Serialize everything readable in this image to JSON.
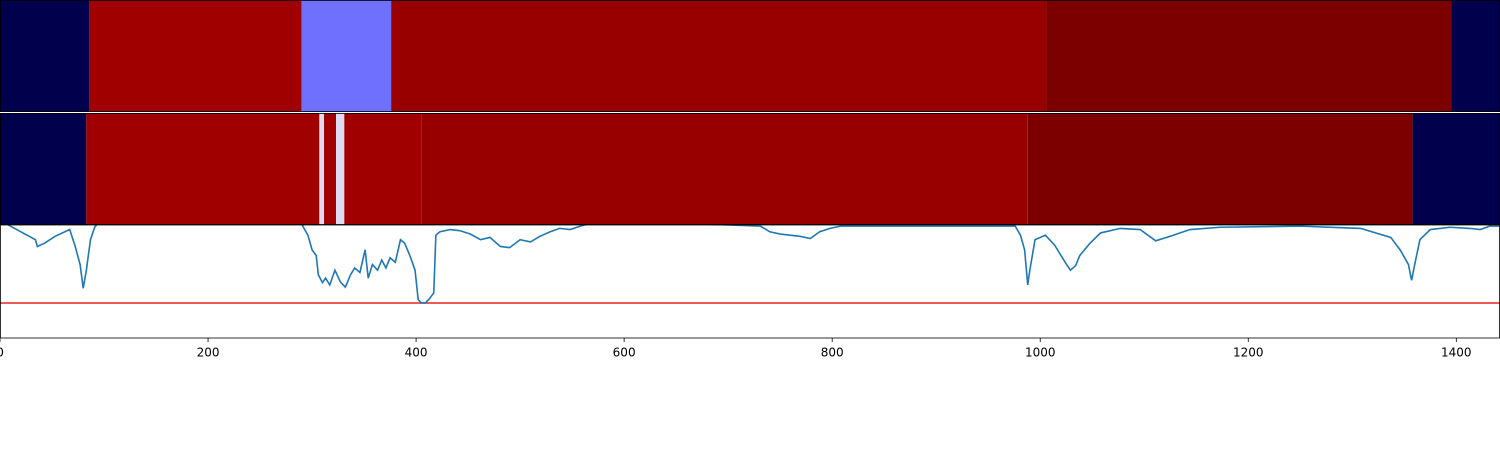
{
  "chart_data": {
    "type": "line",
    "xlim": [
      0,
      1442
    ],
    "xticks": [
      0,
      200,
      400,
      600,
      800,
      1000,
      1200,
      1400
    ],
    "ylim": [
      0,
      1
    ],
    "bands": [
      {
        "segments": [
          {
            "start": 0,
            "end": 85.6,
            "color": "#00004c"
          },
          {
            "start": 85.6,
            "end": 290,
            "color": "#a00000"
          },
          {
            "start": 290,
            "end": 376,
            "color": "#7070ff"
          },
          {
            "start": 376,
            "end": 1006,
            "color": "#980000"
          },
          {
            "start": 1006,
            "end": 1395,
            "color": "#7d0000"
          },
          {
            "start": 1395,
            "end": 1442,
            "color": "#00004c"
          }
        ]
      },
      {
        "segments": [
          {
            "start": 0,
            "end": 83,
            "color": "#00004c"
          },
          {
            "start": 83,
            "end": 307,
            "color": "#a00000"
          },
          {
            "start": 307,
            "end": 311.5,
            "color": "#dcdcf2"
          },
          {
            "start": 311.5,
            "end": 323,
            "color": "#a00000"
          },
          {
            "start": 323,
            "end": 331,
            "color": "#dcdcf2"
          },
          {
            "start": 331,
            "end": 405,
            "color": "#a00000"
          },
          {
            "start": 405,
            "end": 988,
            "color": "#980000"
          },
          {
            "start": 988,
            "end": 1358,
            "color": "#7d0000"
          },
          {
            "start": 1358,
            "end": 1442,
            "color": "#00004c"
          }
        ]
      }
    ],
    "threshold": 0.31,
    "threshold_color": "#e8221e",
    "x": [
      0,
      34,
      36,
      43,
      53,
      67,
      72,
      77,
      80,
      83,
      87,
      91,
      96,
      288,
      296,
      300,
      304,
      306,
      310,
      313,
      317,
      322,
      327,
      332,
      337,
      341,
      346,
      351,
      354,
      358,
      363,
      367,
      371,
      375,
      380,
      385,
      389,
      394,
      399,
      402,
      405,
      409,
      413,
      417,
      419,
      423,
      433,
      442,
      452,
      462,
      471,
      481,
      490,
      500,
      510,
      519,
      529,
      538,
      548,
      558,
      577,
      731,
      740,
      750,
      769,
      779,
      788,
      798,
      808,
      976,
      981,
      985,
      988,
      990,
      995,
      1005,
      1014,
      1024,
      1029,
      1034,
      1038,
      1048,
      1058,
      1077,
      1096,
      1111,
      1125,
      1144,
      1173,
      1250,
      1308,
      1337,
      1346,
      1354,
      1357,
      1360,
      1365,
      1375,
      1394,
      1413,
      1423,
      1432,
      1442
    ],
    "series": [
      {
        "color": "#1f77b4",
        "values": [
          1.04,
          0.87,
          0.81,
          0.84,
          0.9,
          0.96,
          0.82,
          0.65,
          0.44,
          0.6,
          0.87,
          0.98,
          1.04,
          1.04,
          0.91,
          0.78,
          0.73,
          0.56,
          0.49,
          0.53,
          0.47,
          0.6,
          0.5,
          0.45,
          0.56,
          0.62,
          0.58,
          0.78,
          0.53,
          0.65,
          0.6,
          0.69,
          0.62,
          0.71,
          0.67,
          0.87,
          0.84,
          0.73,
          0.6,
          0.34,
          0.31,
          0.31,
          0.35,
          0.4,
          0.91,
          0.94,
          0.96,
          0.95,
          0.92,
          0.87,
          0.89,
          0.81,
          0.8,
          0.87,
          0.85,
          0.9,
          0.94,
          0.97,
          0.96,
          0.99,
          1.04,
          0.99,
          0.94,
          0.92,
          0.9,
          0.88,
          0.94,
          0.97,
          0.99,
          0.99,
          0.91,
          0.78,
          0.47,
          0.6,
          0.87,
          0.91,
          0.82,
          0.67,
          0.6,
          0.64,
          0.73,
          0.84,
          0.93,
          0.97,
          0.96,
          0.86,
          0.9,
          0.96,
          0.98,
          0.99,
          0.97,
          0.89,
          0.78,
          0.65,
          0.51,
          0.65,
          0.87,
          0.96,
          0.98,
          0.97,
          0.96,
          0.99,
          0.99
        ]
      }
    ]
  }
}
